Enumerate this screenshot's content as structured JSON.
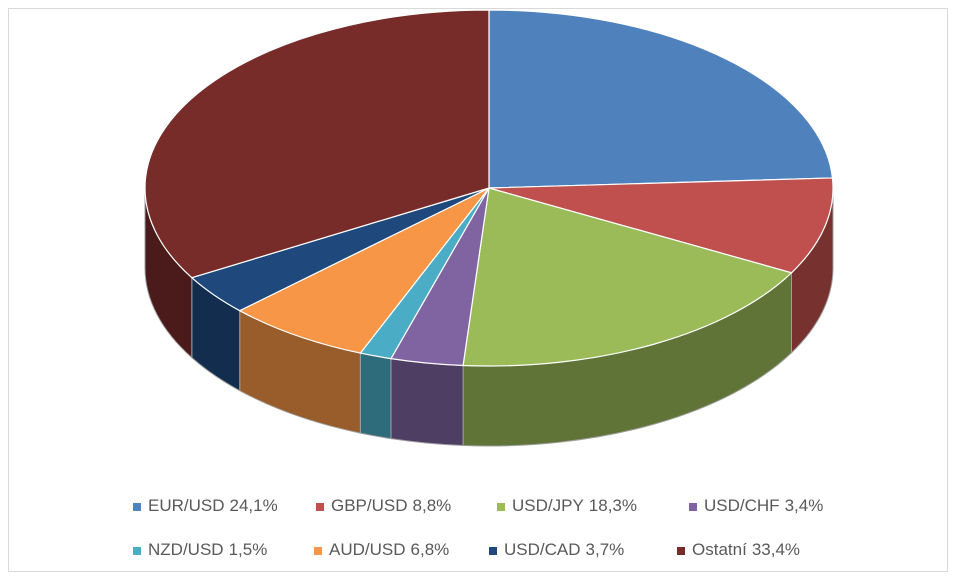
{
  "chart_data": {
    "type": "pie",
    "categories": [
      "EUR/USD",
      "GBP/USD",
      "USD/JPY",
      "USD/CHF",
      "NZD/USD",
      "AUD/USD",
      "USD/CAD",
      "Ostatní"
    ],
    "values": [
      24.1,
      8.8,
      18.3,
      3.4,
      1.5,
      6.8,
      3.7,
      33.4
    ],
    "value_labels": [
      "24,1%",
      "8,8%",
      "18,3%",
      "3,4%",
      "1,5%",
      "6,8%",
      "3,7%",
      "33,4%"
    ],
    "colors": [
      "#4f81bd",
      "#c0504d",
      "#9bbb59",
      "#8064a2",
      "#4bacc6",
      "#f79646",
      "#1f497d",
      "#772c2a"
    ],
    "legend": "bottom"
  }
}
